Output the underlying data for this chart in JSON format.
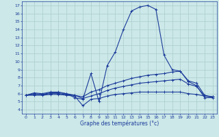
{
  "xlabel": "Graphe des températures (°c)",
  "bg_color": "#cce8e8",
  "line_color": "#1a3a9a",
  "grid_color": "#aacccc",
  "xlim": [
    -0.5,
    23.5
  ],
  "ylim": [
    3.5,
    17.5
  ],
  "yticks": [
    4,
    5,
    6,
    7,
    8,
    9,
    10,
    11,
    12,
    13,
    14,
    15,
    16,
    17
  ],
  "xticks": [
    0,
    1,
    2,
    3,
    4,
    5,
    6,
    7,
    8,
    9,
    10,
    11,
    12,
    13,
    14,
    15,
    16,
    17,
    18,
    19,
    20,
    21,
    22,
    23
  ],
  "series": [
    {
      "x": [
        0,
        1,
        2,
        3,
        4,
        5,
        6,
        7,
        8,
        9,
        10,
        11,
        12,
        13,
        14,
        15,
        16,
        17,
        18,
        19,
        20,
        21,
        22,
        23
      ],
      "y": [
        5.8,
        6.1,
        6.0,
        6.2,
        6.2,
        6.0,
        5.5,
        5.3,
        8.5,
        5.0,
        9.5,
        11.2,
        14.0,
        16.3,
        16.8,
        17.0,
        16.5,
        10.8,
        9.0,
        8.8,
        7.5,
        7.0,
        5.5,
        5.5
      ]
    },
    {
      "x": [
        0,
        1,
        2,
        3,
        4,
        5,
        6,
        7,
        8,
        9,
        10,
        11,
        12,
        13,
        14,
        15,
        16,
        17,
        18,
        19,
        20,
        21,
        22,
        23
      ],
      "y": [
        5.8,
        6.0,
        5.9,
        6.1,
        6.1,
        6.0,
        5.8,
        5.6,
        6.2,
        6.5,
        7.0,
        7.3,
        7.6,
        7.9,
        8.1,
        8.3,
        8.4,
        8.5,
        8.7,
        8.8,
        7.6,
        7.3,
        5.8,
        5.6
      ]
    },
    {
      "x": [
        0,
        1,
        2,
        3,
        4,
        5,
        6,
        7,
        8,
        9,
        10,
        11,
        12,
        13,
        14,
        15,
        16,
        17,
        18,
        19,
        20,
        21,
        22,
        23
      ],
      "y": [
        5.8,
        5.9,
        5.9,
        6.0,
        6.0,
        5.9,
        5.8,
        5.4,
        5.7,
        6.0,
        6.4,
        6.7,
        6.9,
        7.1,
        7.3,
        7.4,
        7.5,
        7.6,
        7.7,
        7.8,
        7.2,
        6.9,
        5.7,
        5.6
      ]
    },
    {
      "x": [
        0,
        1,
        2,
        3,
        4,
        5,
        6,
        7,
        8,
        9,
        10,
        11,
        12,
        13,
        14,
        15,
        16,
        17,
        18,
        19,
        20,
        21,
        22,
        23
      ],
      "y": [
        5.8,
        5.8,
        5.8,
        5.9,
        5.9,
        5.8,
        5.7,
        4.5,
        5.3,
        5.4,
        5.7,
        5.9,
        6.0,
        6.1,
        6.2,
        6.2,
        6.2,
        6.2,
        6.2,
        6.2,
        6.0,
        5.9,
        5.7,
        5.6
      ]
    }
  ]
}
